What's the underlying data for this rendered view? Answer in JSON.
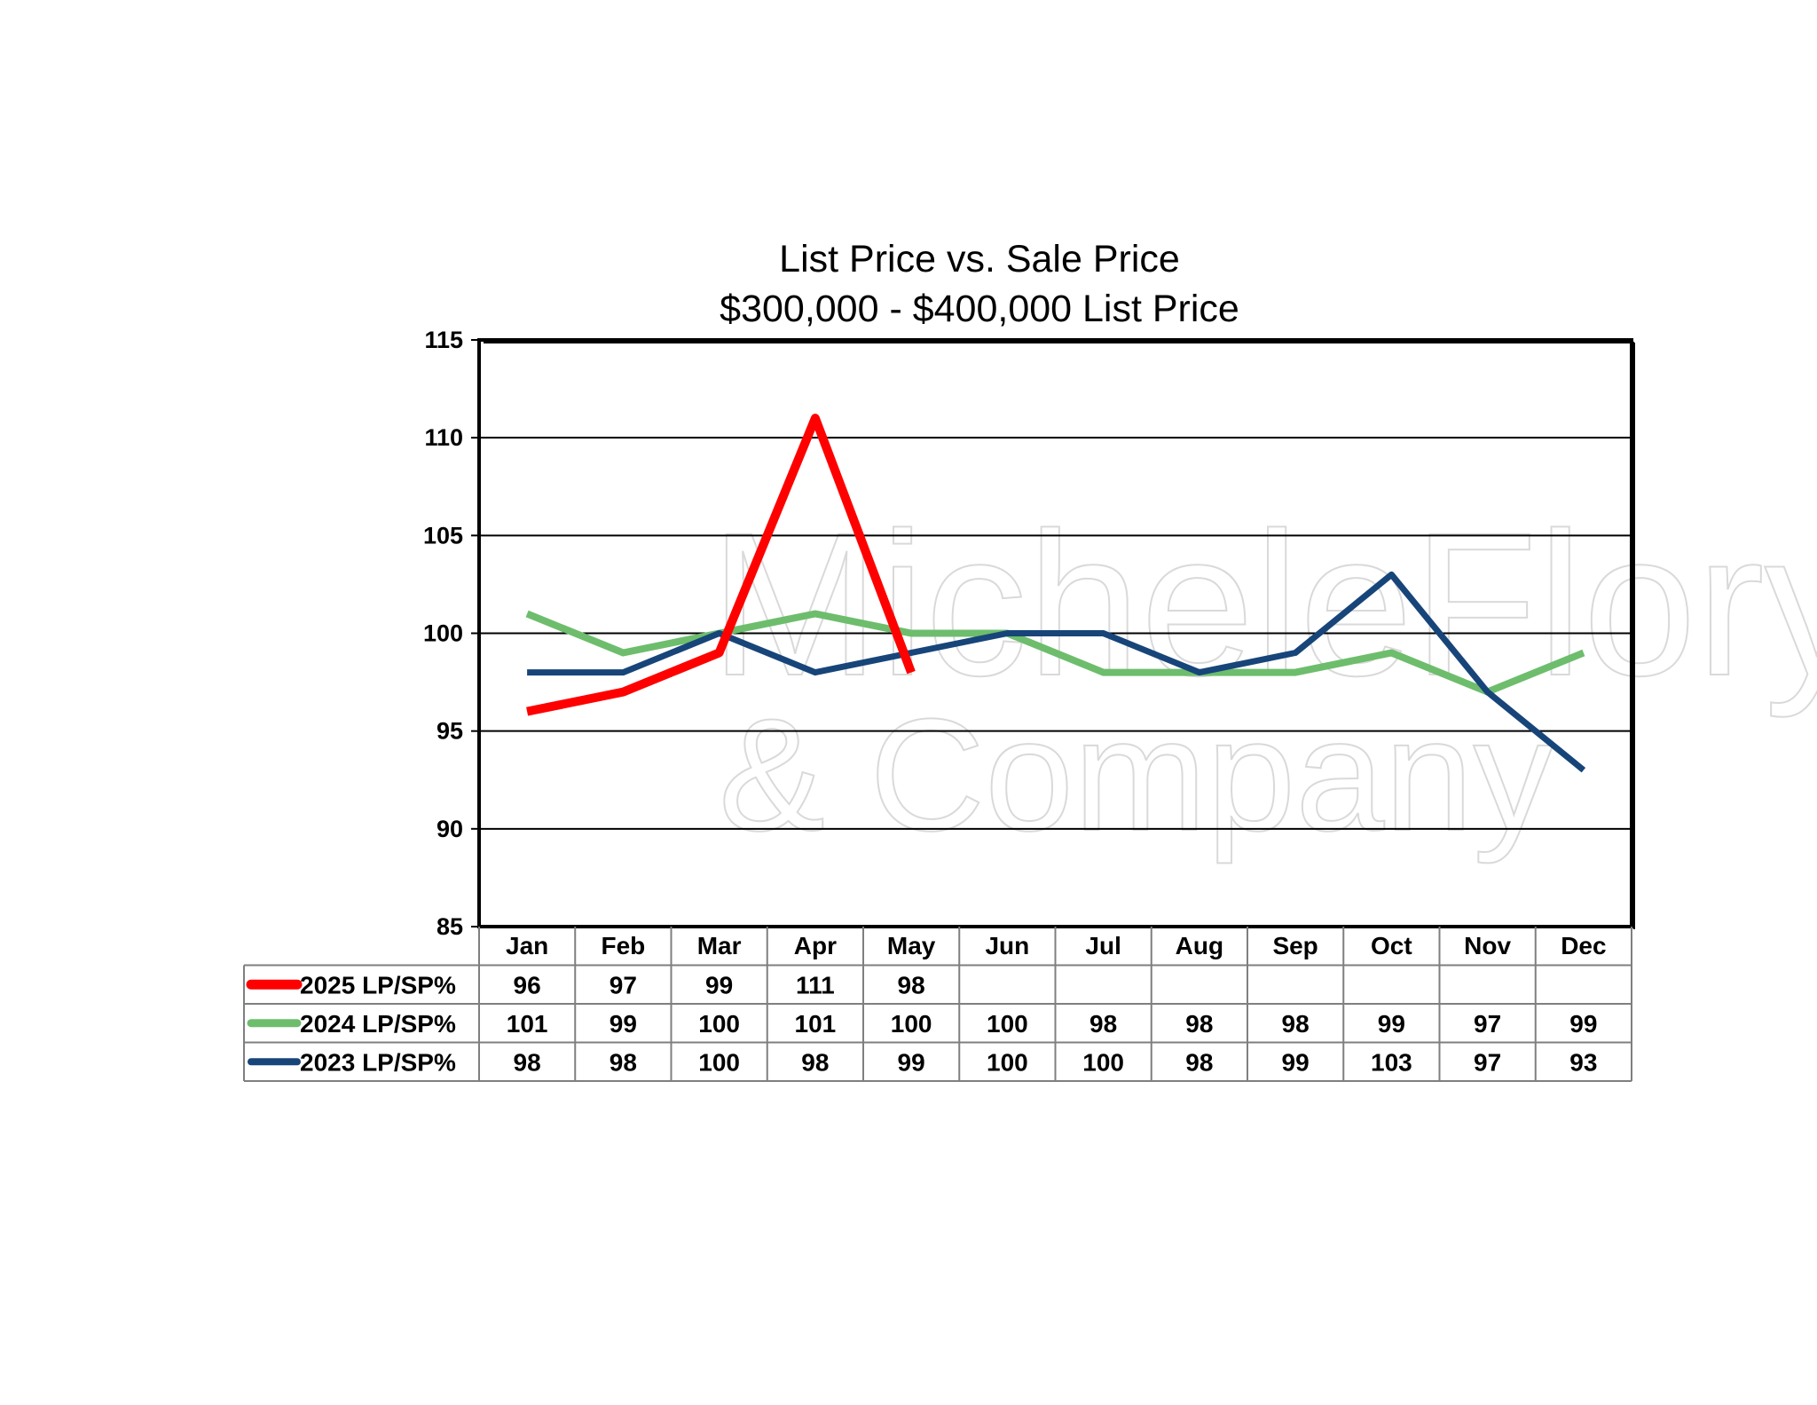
{
  "watermark": {
    "line1": "MicheleFlory",
    "line2": "& Company"
  },
  "chart_data": {
    "type": "line",
    "title": "List Price vs. Sale Price",
    "subtitle": "$300,000 - $400,000  List Price",
    "xlabel": "",
    "ylabel": "",
    "ylim": [
      85,
      115
    ],
    "yticks": [
      85,
      90,
      95,
      100,
      105,
      110,
      115
    ],
    "grid": true,
    "legend": "data-table-left",
    "categories": [
      "Jan",
      "Feb",
      "Mar",
      "Apr",
      "May",
      "Jun",
      "Jul",
      "Aug",
      "Sep",
      "Oct",
      "Nov",
      "Dec"
    ],
    "series": [
      {
        "name": "2025 LP/SP%",
        "color": "#ff0000",
        "values": [
          96,
          97,
          99,
          111,
          98,
          null,
          null,
          null,
          null,
          null,
          null,
          null
        ]
      },
      {
        "name": "2024 LP/SP%",
        "color": "#6dbd6d",
        "values": [
          101,
          99,
          100,
          101,
          100,
          100,
          98,
          98,
          98,
          99,
          97,
          99
        ]
      },
      {
        "name": "2023 LP/SP%",
        "color": "#17457a",
        "values": [
          98,
          98,
          100,
          98,
          99,
          100,
          100,
          98,
          99,
          103,
          97,
          93
        ]
      }
    ]
  }
}
